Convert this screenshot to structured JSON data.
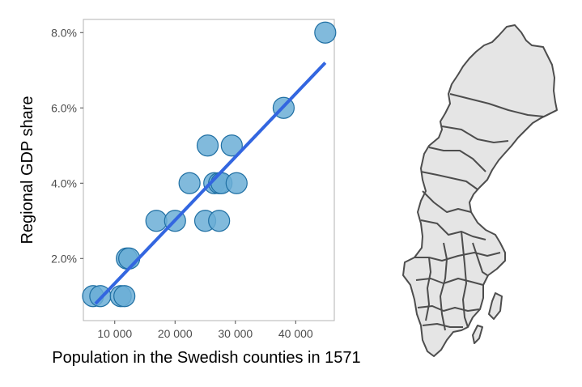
{
  "chart_data": {
    "type": "scatter",
    "xlabel": "Population in the Swedish counties in 1571",
    "ylabel": "Regional GDP share",
    "x_ticks": [
      {
        "value": 10000,
        "label": "10 000"
      },
      {
        "value": 20000,
        "label": "20 000"
      },
      {
        "value": 30000,
        "label": "30 000"
      },
      {
        "value": 40000,
        "label": "40 000"
      }
    ],
    "y_ticks": [
      {
        "value": 2.0,
        "label": "2.0%"
      },
      {
        "value": 4.0,
        "label": "4.0%"
      },
      {
        "value": 6.0,
        "label": "6.0%"
      },
      {
        "value": 8.0,
        "label": "8.0%"
      }
    ],
    "xlim": [
      4800,
      46400
    ],
    "ylim": [
      0.35,
      8.35
    ],
    "grid": false,
    "points": [
      {
        "x": 6400,
        "y": 1.0
      },
      {
        "x": 7600,
        "y": 1.0
      },
      {
        "x": 11000,
        "y": 1.0
      },
      {
        "x": 11600,
        "y": 1.0
      },
      {
        "x": 12000,
        "y": 2.0
      },
      {
        "x": 12400,
        "y": 2.0
      },
      {
        "x": 16900,
        "y": 3.0
      },
      {
        "x": 20000,
        "y": 3.0
      },
      {
        "x": 22400,
        "y": 4.0
      },
      {
        "x": 25000,
        "y": 3.0
      },
      {
        "x": 25400,
        "y": 5.0
      },
      {
        "x": 26500,
        "y": 4.0
      },
      {
        "x": 27300,
        "y": 3.0
      },
      {
        "x": 27300,
        "y": 4.0
      },
      {
        "x": 27700,
        "y": 4.0
      },
      {
        "x": 29400,
        "y": 5.0
      },
      {
        "x": 30200,
        "y": 4.0
      },
      {
        "x": 38000,
        "y": 6.0
      },
      {
        "x": 44900,
        "y": 8.0
      }
    ],
    "trend_line": {
      "x": [
        6800,
        44900
      ],
      "y": [
        0.8,
        7.2
      ]
    },
    "colors": {
      "point_fill": "#6baed6",
      "point_stroke": "#1f6fa3",
      "trend_line": "#3366e0",
      "panel_border": "#b3b3b3",
      "map_fill": "#e5e5e5",
      "map_stroke": "#4d4d4d"
    }
  },
  "inset_map": {
    "icon": "sweden-counties-map",
    "colors": {
      "fill": "#e5e5e5",
      "stroke": "#4d4d4d"
    }
  }
}
